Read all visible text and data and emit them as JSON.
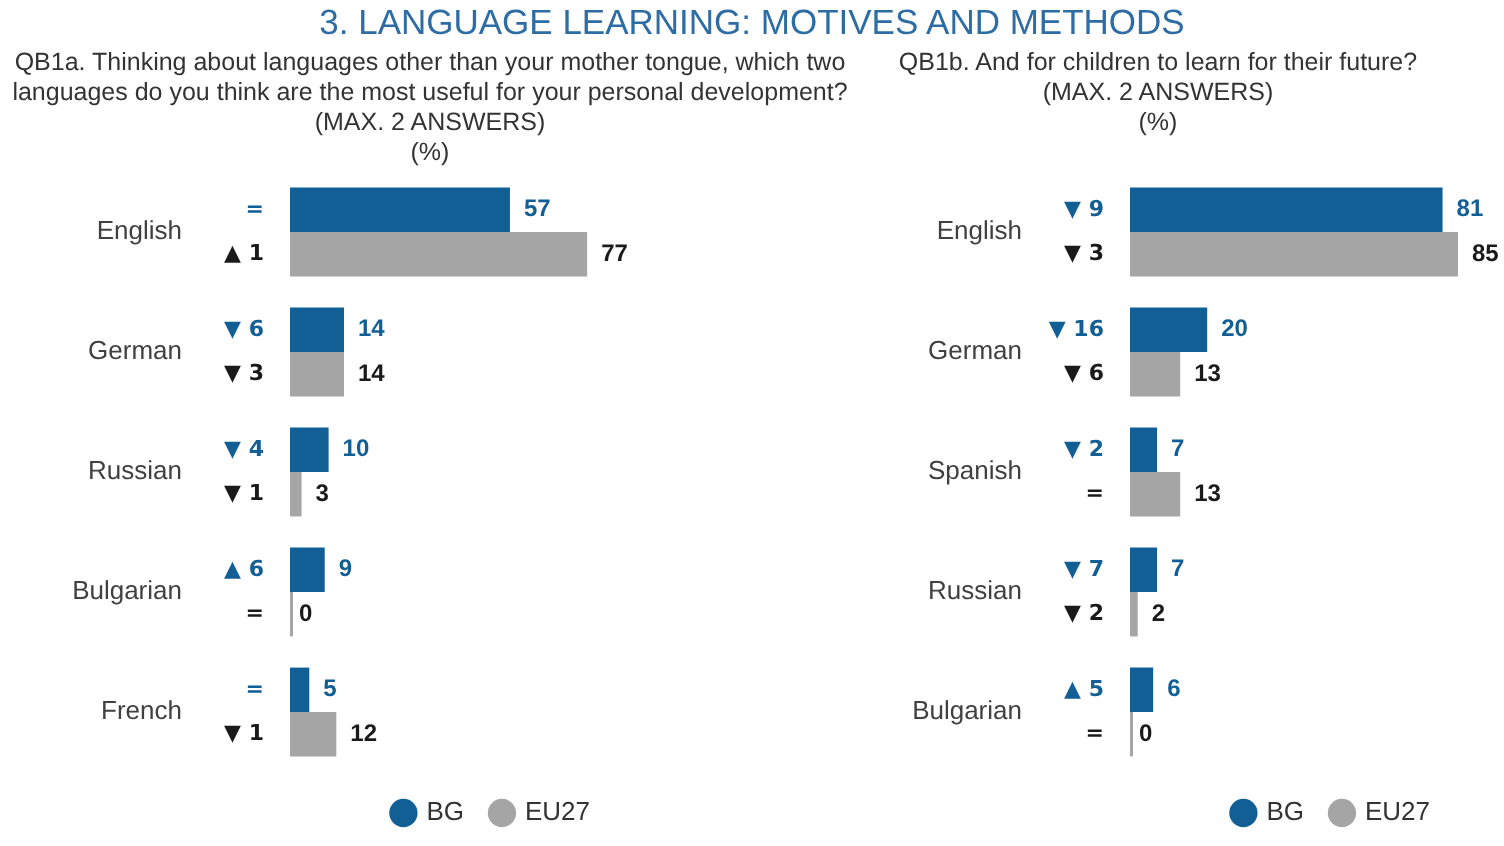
{
  "chart_data": [
    {
      "type": "bar",
      "orientation": "horizontal",
      "title": "3. LANGUAGE LEARNING: MOTIVES AND METHODS",
      "subtitle": "QB1a. Thinking about languages other than your mother tongue, which two languages do you think are the most useful for your personal development?\n(MAX. 2 ANSWERS)\n(%)",
      "categories": [
        "English",
        "German",
        "Russian",
        "Bulgarian",
        "French"
      ],
      "series": [
        {
          "name": "BG",
          "color": "#125f95",
          "values": [
            57,
            14,
            10,
            9,
            5
          ]
        },
        {
          "name": "EU27",
          "color": "#a5a5a5",
          "values": [
            77,
            14,
            3,
            0,
            12
          ]
        }
      ],
      "data_labels": true,
      "legend": "bottom right",
      "annotations": [
        "=",
        "▲ 1",
        "▼ 6",
        "▼ 3",
        "▼ 4",
        "▼ 1",
        "▲ 6",
        "=",
        "=",
        "▼ 1"
      ]
    },
    {
      "type": "bar",
      "orientation": "horizontal",
      "subtitle": "QB1b. And for children to learn for their future?\n(MAX. 2 ANSWERS)\n(%)",
      "categories": [
        "English",
        "German",
        "Spanish",
        "Russian",
        "Bulgarian"
      ],
      "series": [
        {
          "name": "BG",
          "color": "#125f95",
          "values": [
            81,
            20,
            7,
            7,
            6
          ]
        },
        {
          "name": "EU27",
          "color": "#a5a5a5",
          "values": [
            85,
            13,
            13,
            2,
            0
          ]
        }
      ],
      "data_labels": true,
      "legend": "bottom right",
      "annotations": [
        "▼ 9",
        "▼ 3",
        "▼ 16",
        "▼ 6",
        "▼ 2",
        "=",
        "▼ 7",
        "▼ 2",
        "▲ 5",
        "="
      ]
    }
  ]
}
